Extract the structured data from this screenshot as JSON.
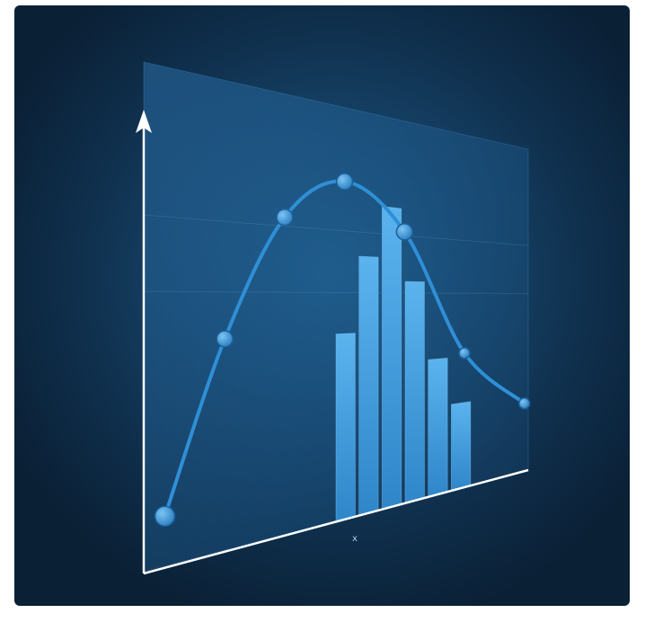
{
  "chart_data": {
    "type": "bar",
    "title": "",
    "xlabel": "x",
    "ylabel": "",
    "curve": {
      "type": "line",
      "x": [
        0,
        1,
        2,
        3,
        4,
        5,
        6
      ],
      "values": [
        10,
        45,
        72,
        82,
        71,
        38,
        21
      ]
    },
    "bars": {
      "values": [
        45,
        64,
        77,
        58,
        37,
        24
      ]
    },
    "ylim": [
      0,
      100
    ],
    "grid": true,
    "colors": {
      "curve": "#2f8fd6",
      "bars": "#3a9be0",
      "axis": "#ffffff",
      "panel": "#1d5a8a"
    }
  }
}
